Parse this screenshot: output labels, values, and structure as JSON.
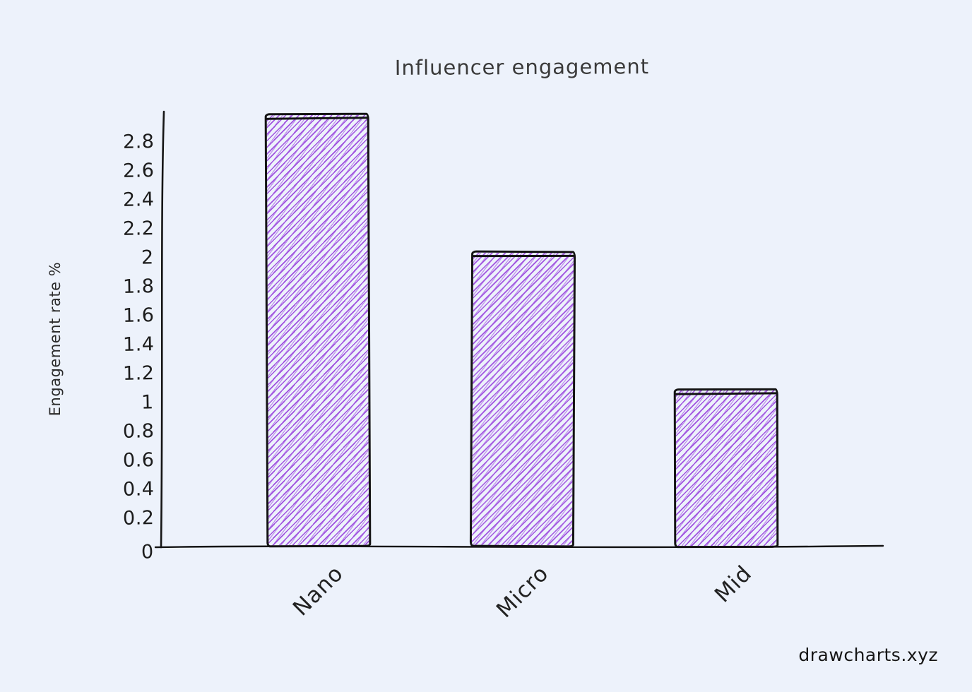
{
  "page": {
    "background": "#edf2fb"
  },
  "chart_data": {
    "type": "bar",
    "title": "Influencer engagement",
    "ylabel": "Engagement rate %",
    "xlabel": "",
    "categories": [
      "Nano",
      "Micro",
      "Mid"
    ],
    "values": [
      3,
      2.05,
      1.1
    ],
    "ylim": [
      0,
      3
    ],
    "yticks": [
      0,
      0.2,
      0.4,
      0.6,
      0.8,
      1,
      1.2,
      1.4,
      1.6,
      1.8,
      2,
      2.2,
      2.4,
      2.6,
      2.8
    ],
    "grid": false,
    "legend": false,
    "style": "hand-drawn-sketch",
    "hatch_color": "#a052e0",
    "outline_color": "#141414",
    "axis_color": "#161616"
  },
  "watermark": {
    "label": "drawcharts.xyz"
  }
}
